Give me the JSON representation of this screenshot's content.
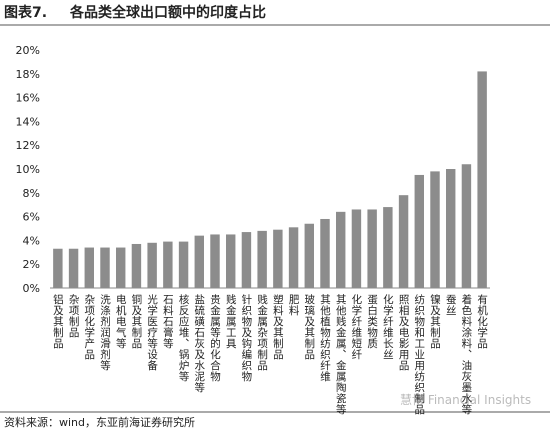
{
  "header": {
    "label": "图表7.",
    "title": "各品类全球出口额中的印度占比"
  },
  "chart_data": {
    "type": "bar",
    "categories": [
      "铝及其制品",
      "杂项制品",
      "杂项化学产品",
      "洗涤剂润滑剂等",
      "电机电气等",
      "铜及其制品",
      "光学医疗等设备",
      "石料石膏等",
      "核反应堆、锅炉等",
      "盐硫磺石灰及水泥等",
      "贵金属等的化合物",
      "贱金属工具",
      "针织物及钩编织物",
      "贱金属杂项制品",
      "塑料及其制品",
      "肥料",
      "玻璃及其制品",
      "其他植物纺织纤维",
      "其他贱金属、金属陶瓷等",
      "化学纤维短纤",
      "蛋白类物质",
      "化学纤维长丝",
      "照相及电影用品",
      "纺织物和工业用纺织制品",
      "镍及其制品",
      "蚕丝",
      "着色料涂料、油灰墨水等",
      "有机化学品"
    ],
    "values": [
      3.3,
      3.3,
      3.4,
      3.4,
      3.4,
      3.7,
      3.8,
      3.9,
      3.9,
      4.4,
      4.5,
      4.5,
      4.7,
      4.8,
      4.9,
      5.1,
      5.4,
      5.8,
      6.4,
      6.6,
      6.6,
      6.8,
      7.8,
      9.5,
      9.8,
      10.0,
      10.4,
      18.2
    ],
    "color": "#8c8c8c",
    "ylim": [
      0,
      20
    ],
    "yticks": [
      {
        "value": 0,
        "label": "0%"
      },
      {
        "value": 2,
        "label": "2%"
      },
      {
        "value": 4,
        "label": "4%"
      },
      {
        "value": 6,
        "label": "6%"
      },
      {
        "value": 8,
        "label": "8%"
      },
      {
        "value": 10,
        "label": "10%"
      },
      {
        "value": 12,
        "label": "12%"
      },
      {
        "value": 14,
        "label": "14%"
      },
      {
        "value": 16,
        "label": "16%"
      },
      {
        "value": 18,
        "label": "18%"
      },
      {
        "value": 20,
        "label": "20%"
      }
    ],
    "grid": false
  },
  "footer": {
    "source": "资料来源：wind，东亚前海证券研究所",
    "watermark": "慧博 Financial Insights"
  }
}
